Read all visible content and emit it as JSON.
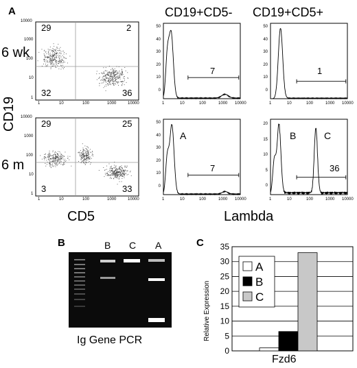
{
  "panel_a": {
    "letter": "A",
    "col_titles": [
      "CD19+CD5-",
      "CD19+CD5+"
    ],
    "row_labels": [
      "6 wk",
      "6 m"
    ],
    "y_axis_label": "CD19",
    "x_axis_label_left": "CD5",
    "x_axis_label_right": "Lambda",
    "log_tick_labels_y": [
      "10000",
      "1000",
      "100",
      "10",
      "1"
    ],
    "log_tick_labels_x": [
      "1",
      "10",
      "100",
      "1000",
      "10000"
    ],
    "hist_y_ticks_6wk_a": [
      "50",
      "40",
      "30",
      "20",
      "10",
      "0"
    ],
    "hist_y_ticks_6wk_b": [
      "50",
      "40",
      "30",
      "20",
      "10",
      "0"
    ],
    "hist_y_ticks_6m_a": [
      "50",
      "40",
      "30",
      "20",
      "10",
      "0"
    ],
    "hist_y_ticks_6m_b": [
      "20",
      "15",
      "10",
      "5",
      "0"
    ],
    "dot_6wk": {
      "ul": "29",
      "ur": "2",
      "ll": "32",
      "lr": "36"
    },
    "dot_6m": {
      "ul": "29",
      "ur": "25",
      "ll": "3",
      "lr": "33"
    },
    "hist_6wk_cd5neg": "7",
    "hist_6wk_cd5pos": "1",
    "hist_6m_cd5neg": "7",
    "hist_6m_cd5pos": "36",
    "peak_labels": [
      "A",
      "B",
      "C"
    ]
  },
  "panel_b": {
    "letter": "B",
    "lanes": [
      "B",
      "C",
      "A"
    ],
    "caption": "Ig Gene PCR"
  },
  "panel_c": {
    "letter": "C",
    "chart_data": {
      "type": "bar",
      "categories": [
        "Fzd6"
      ],
      "series": [
        {
          "name": "A",
          "values": [
            1
          ],
          "color": "#ffffff"
        },
        {
          "name": "B",
          "values": [
            6.5
          ],
          "color": "#000000"
        },
        {
          "name": "C",
          "values": [
            33
          ],
          "color": "#c8c8c8"
        }
      ],
      "ylabel": "Relative Expression",
      "xlabel": "Fzd6",
      "ylim": [
        0,
        35
      ],
      "yticks": [
        "0",
        "5",
        "10",
        "15",
        "20",
        "25",
        "30",
        "35"
      ],
      "legend": "top-left"
    }
  }
}
